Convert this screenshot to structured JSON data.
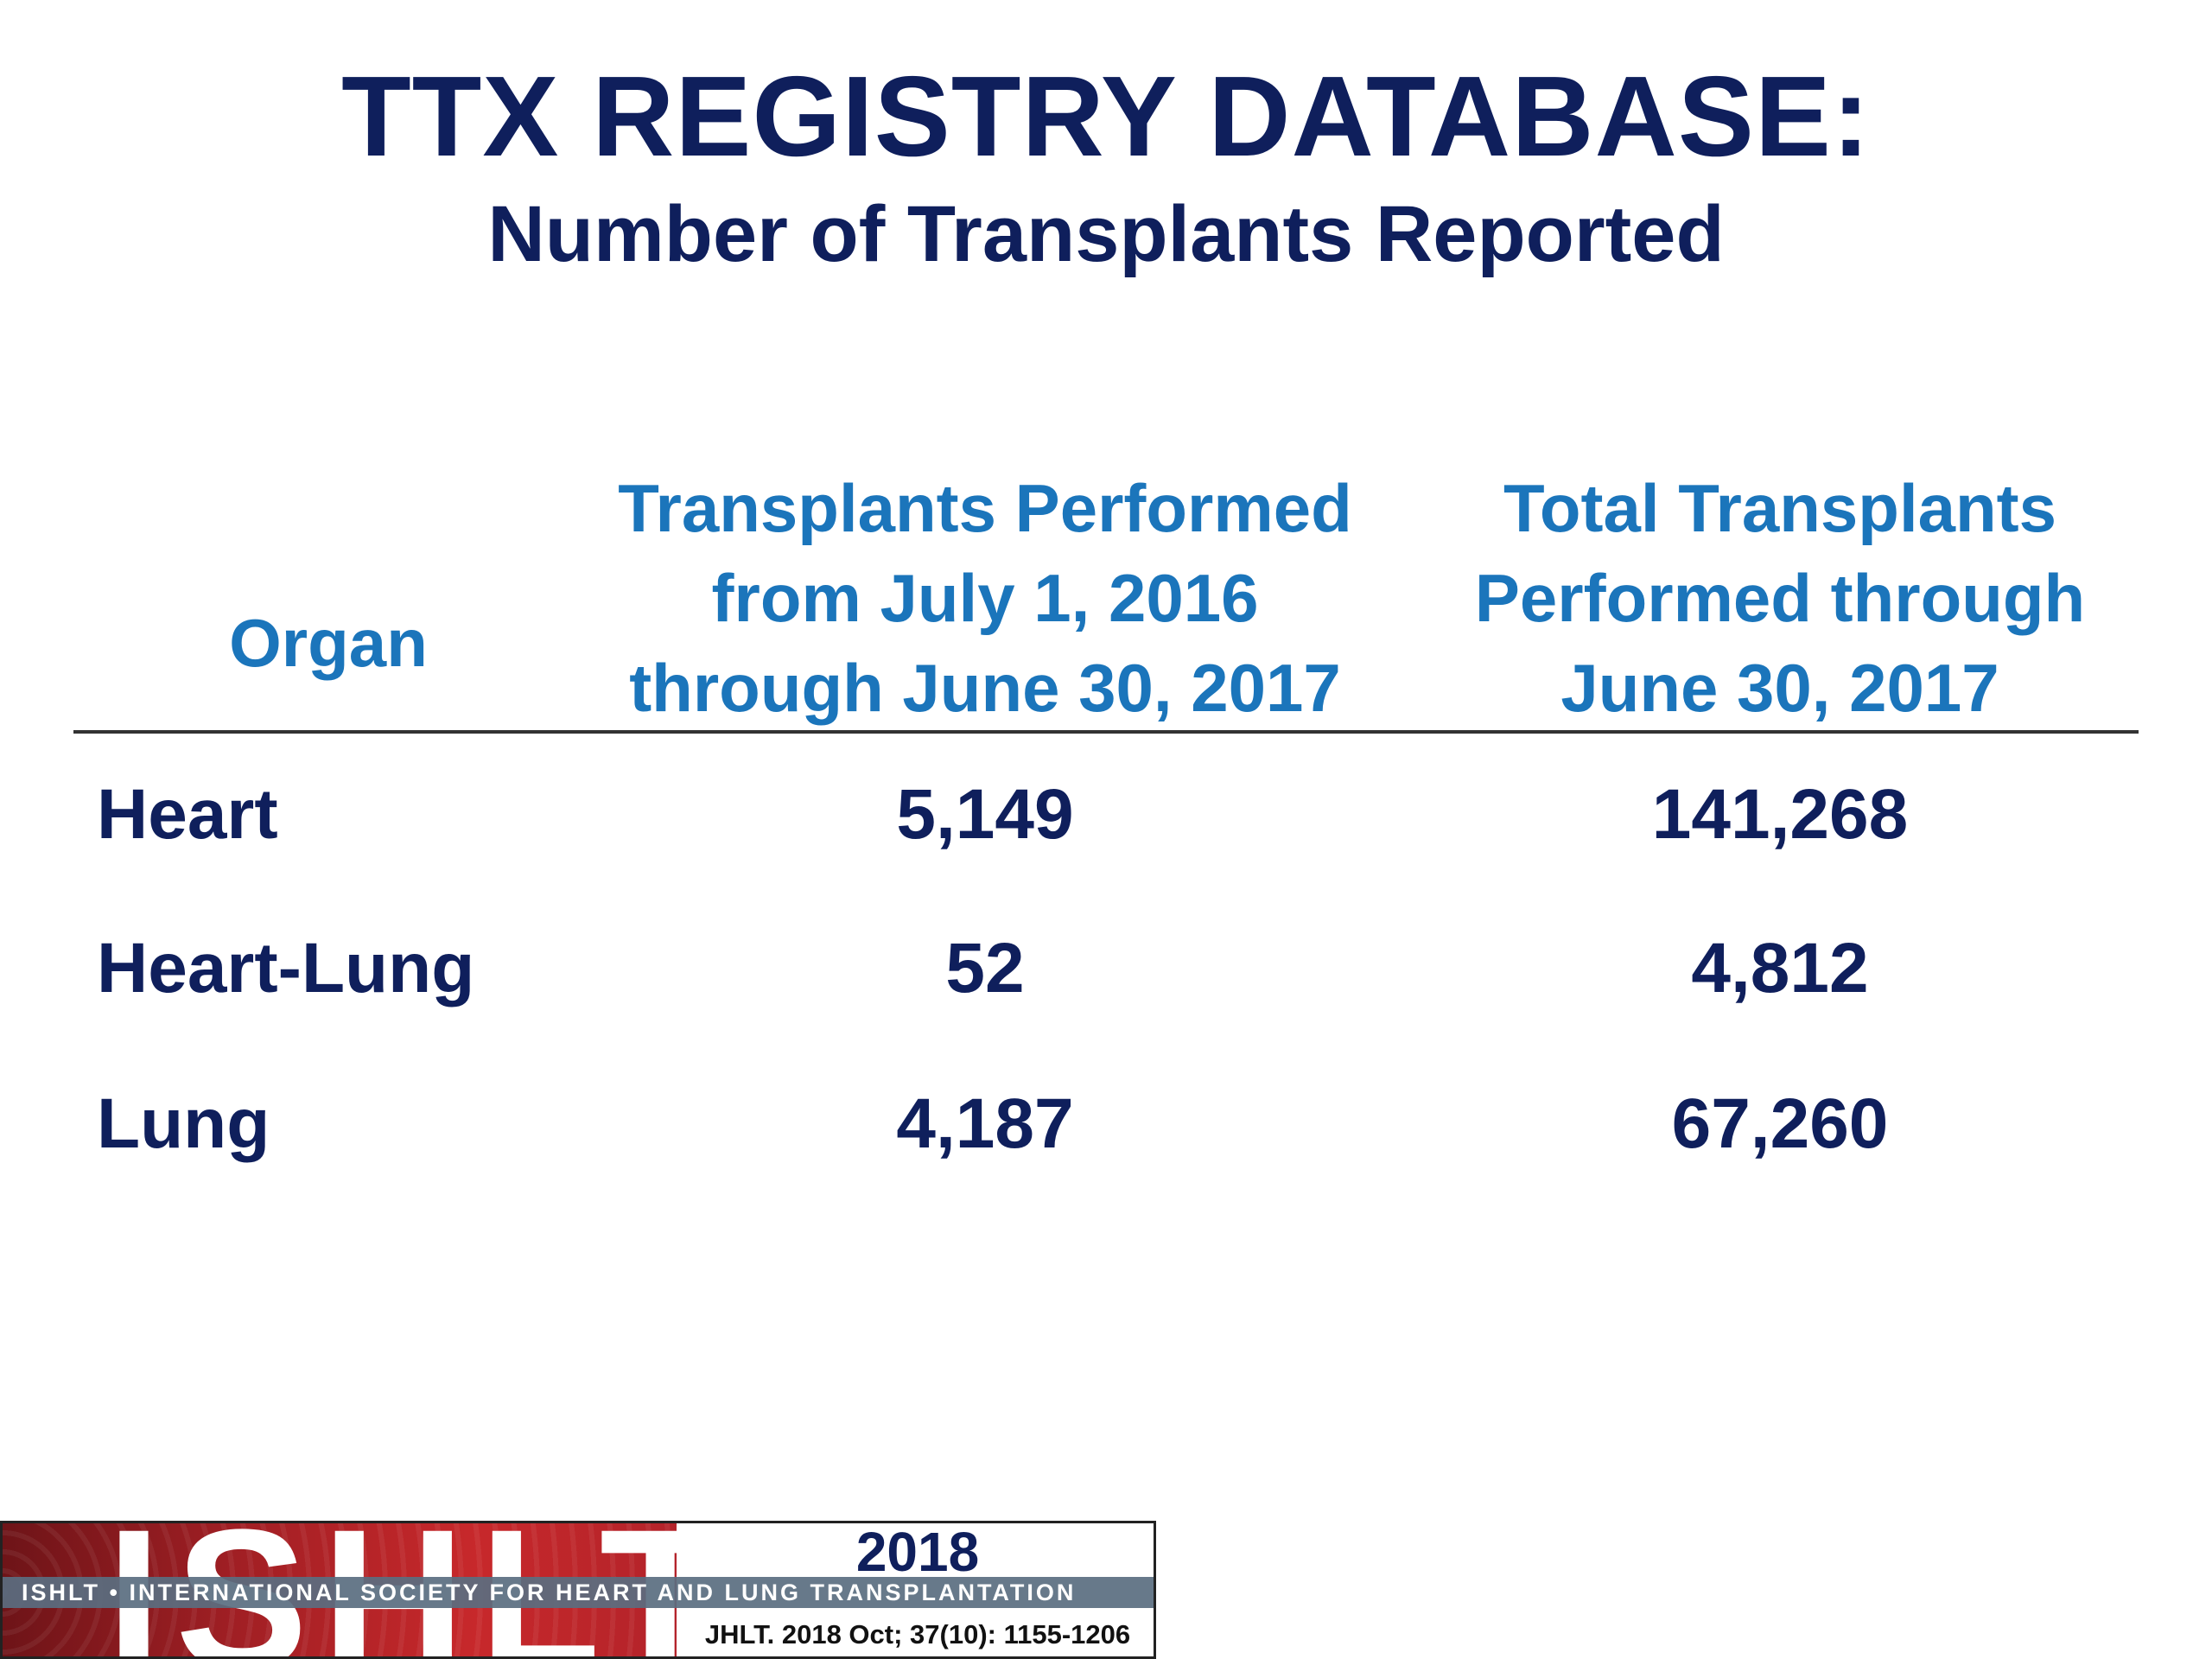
{
  "title": "TTX REGISTRY DATABASE:",
  "subtitle": "Number of Transplants Reported",
  "table": {
    "headers": {
      "organ": [
        "Organ"
      ],
      "period": [
        "Transplants Performed",
        "from July 1, 2016",
        "through June 30, 2017"
      ],
      "total": [
        "Total Transplants",
        "Performed through",
        "June 30, 2017"
      ]
    },
    "rows": [
      {
        "organ": "Heart",
        "period": "5,149",
        "total": "141,268"
      },
      {
        "organ": "Heart-Lung",
        "period": "52",
        "total": "4,812"
      },
      {
        "organ": "Lung",
        "period": "4,187",
        "total": "67,260"
      }
    ]
  },
  "footer": {
    "logo_text": "ISHLT",
    "year": "2018",
    "society": "ISHLT • INTERNATIONAL SOCIETY FOR HEART AND LUNG TRANSPLANTATION",
    "citation": "JHLT. 2018 Oct; 37(10): 1155-1206"
  },
  "colors": {
    "title": "#0f1f5c",
    "header": "#1b75bb",
    "logo_red": "#c7282b"
  }
}
